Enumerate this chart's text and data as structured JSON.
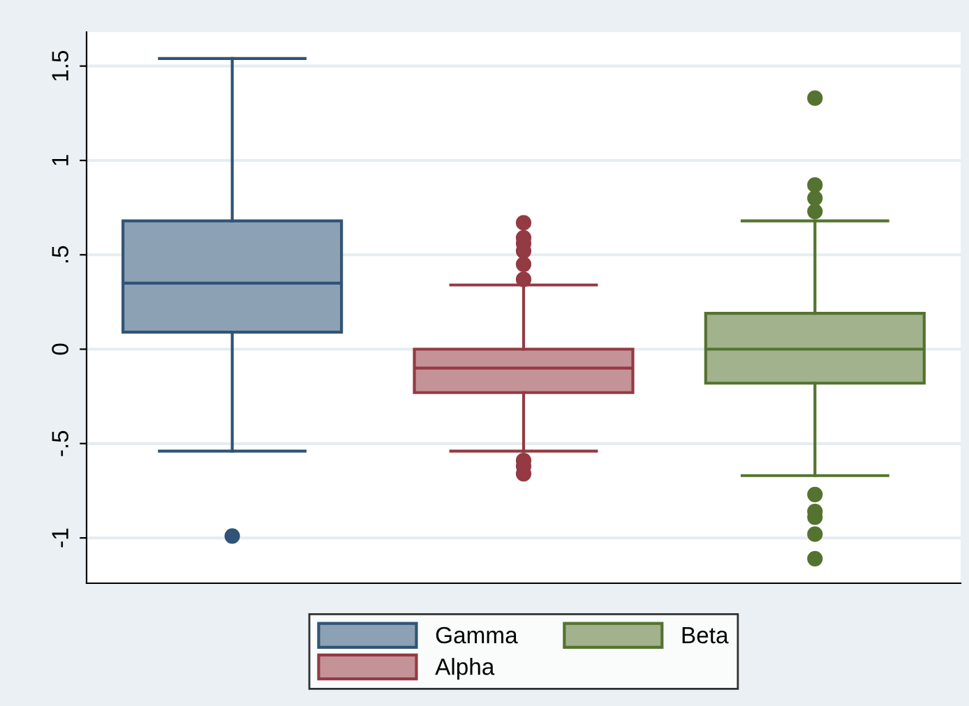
{
  "chart_data": {
    "type": "box",
    "categories": [
      null,
      null,
      null
    ],
    "series": [
      {
        "name": "Gamma",
        "color": "#2f5476",
        "boxes": [
          {
            "low": -0.54,
            "q1": 0.09,
            "median": 0.35,
            "q3": 0.68,
            "high": 1.54,
            "outliers": [
              -0.99
            ]
          },
          null,
          null
        ]
      },
      {
        "name": "Alpha",
        "color": "#943a43",
        "boxes": [
          null,
          {
            "low": -0.54,
            "q1": -0.23,
            "median": -0.1,
            "q3": 0.0,
            "high": 0.34,
            "outliers": [
              0.67,
              0.59,
              0.56,
              0.52,
              0.45,
              0.37,
              -0.59,
              -0.62,
              -0.66
            ]
          },
          null
        ]
      },
      {
        "name": "Beta",
        "color": "#547330",
        "boxes": [
          null,
          null,
          {
            "low": -0.67,
            "q1": -0.18,
            "median": 0.0,
            "q3": 0.19,
            "high": 0.68,
            "outliers": [
              1.33,
              0.87,
              0.8,
              0.73,
              -0.77,
              -0.86,
              -0.89,
              -0.98,
              -1.11
            ]
          }
        ]
      }
    ],
    "ylim": [
      -1.24,
      1.68
    ],
    "yticks": [
      {
        "value": -1,
        "label": "-1"
      },
      {
        "value": -0.5,
        "label": "-.5"
      },
      0,
      {
        "value": 0.5,
        "label": ".5"
      },
      1,
      {
        "value": 1.5,
        "label": "1.5"
      }
    ],
    "grid": "y",
    "legend": "bottom"
  }
}
